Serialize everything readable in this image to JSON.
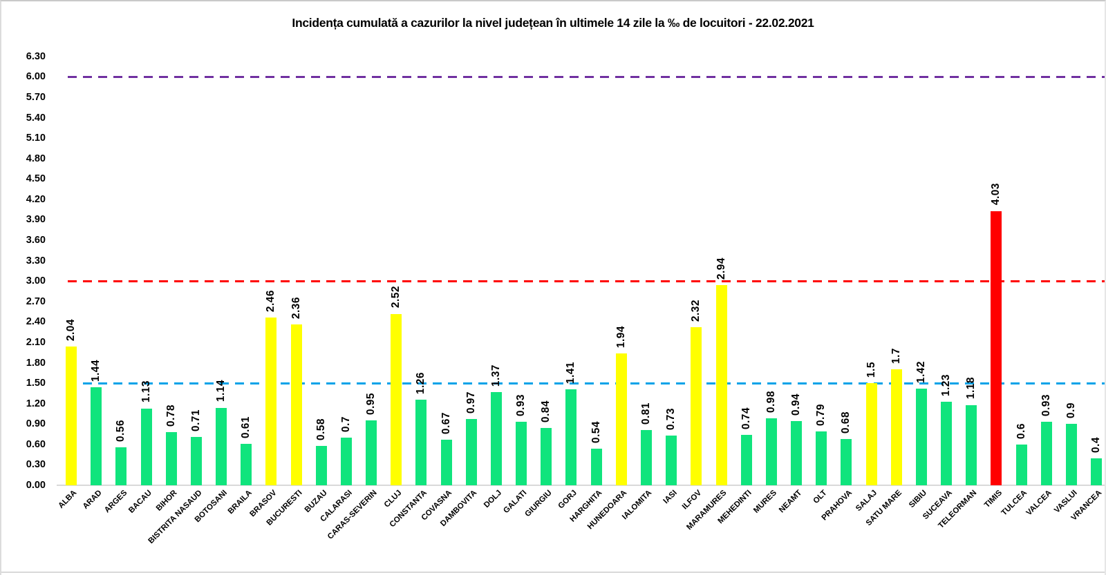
{
  "title": "Incidența cumulată a cazurilor la nivel județean în ultimele 14 zile la ‰ de locuitori - 22.02.2021",
  "chart_data": {
    "type": "bar",
    "title": "Incidența cumulată a cazurilor la nivel județean în ultimele 14 zile la ‰ de locuitori - 22.02.2021",
    "xlabel": "",
    "ylabel": "",
    "ylim": [
      0,
      6.3
    ],
    "ytick_step": 0.3,
    "yticks": [
      "0.00",
      "0.30",
      "0.60",
      "0.90",
      "1.20",
      "1.50",
      "1.80",
      "2.10",
      "2.40",
      "2.70",
      "3.00",
      "3.30",
      "3.60",
      "3.90",
      "4.20",
      "4.50",
      "4.80",
      "5.10",
      "5.40",
      "5.70",
      "6.00",
      "6.30"
    ],
    "grid": "off",
    "legend": "none",
    "categories": [
      "ALBA",
      "ARAD",
      "ARGES",
      "BACAU",
      "BIHOR",
      "BISTRITA NASAUD",
      "BOTOSANI",
      "BRAILA",
      "BRASOV",
      "BUCURESTI",
      "BUZAU",
      "CALARASI",
      "CARAS-SEVERIN",
      "CLUJ",
      "CONSTANTA",
      "COVASNA",
      "DAMBOVITA",
      "DOLJ",
      "GALATI",
      "GIURGIU",
      "GORJ",
      "HARGHITA",
      "HUNEDOARA",
      "IALOMITA",
      "IASI",
      "ILFOV",
      "MARAMURES",
      "MEHEDINTI",
      "MURES",
      "NEAMT",
      "OLT",
      "PRAHOVA",
      "SALAJ",
      "SATU MARE",
      "SIBIU",
      "SUCEAVA",
      "TELEORMAN",
      "TIMIS",
      "TULCEA",
      "VALCEA",
      "VASLUI",
      "VRANCEA"
    ],
    "values": [
      2.04,
      1.44,
      0.56,
      1.13,
      0.78,
      0.71,
      1.14,
      0.61,
      2.46,
      2.36,
      0.58,
      0.7,
      0.95,
      2.52,
      1.26,
      0.67,
      0.97,
      1.37,
      0.93,
      0.84,
      1.41,
      0.54,
      1.94,
      0.81,
      0.73,
      2.32,
      2.94,
      0.74,
      0.98,
      0.94,
      0.79,
      0.68,
      1.5,
      1.7,
      1.42,
      1.23,
      1.18,
      4.03,
      0.6,
      0.93,
      0.9,
      0.4
    ],
    "value_labels": [
      "2.04",
      "1.44",
      "0.56",
      "1.13",
      "0.78",
      "0.71",
      "1.14",
      "0.61",
      "2.46",
      "2.36",
      "0.58",
      "0.7",
      "0.95",
      "2.52",
      "1.26",
      "0.67",
      "0.97",
      "1.37",
      "0.93",
      "0.84",
      "1.41",
      "0.54",
      "1.94",
      "0.81",
      "0.73",
      "2.32",
      "2.94",
      "0.74",
      "0.98",
      "0.94",
      "0.79",
      "0.68",
      "1.5",
      "1.7",
      "1.42",
      "1.23",
      "1.18",
      "4.03",
      "0.6",
      "0.93",
      "0.9",
      "0.4"
    ],
    "bar_colors": [
      "yellow",
      "green",
      "green",
      "green",
      "green",
      "green",
      "green",
      "green",
      "yellow",
      "yellow",
      "green",
      "green",
      "green",
      "yellow",
      "green",
      "green",
      "green",
      "green",
      "green",
      "green",
      "green",
      "green",
      "yellow",
      "green",
      "green",
      "yellow",
      "yellow",
      "green",
      "green",
      "green",
      "green",
      "green",
      "yellow",
      "yellow",
      "green",
      "green",
      "green",
      "red",
      "green",
      "green",
      "green",
      "green"
    ],
    "palette": {
      "green": "#10e47d",
      "yellow": "#ffff00",
      "red": "#ff0000"
    },
    "reference_lines": [
      {
        "value": 6.0,
        "color": "#7030a0",
        "style": "dashed"
      },
      {
        "value": 3.0,
        "color": "#ff0000",
        "style": "dashed"
      },
      {
        "value": 1.5,
        "color": "#00a2e8",
        "style": "dashed"
      }
    ],
    "axis_color": "#d9d9d9"
  }
}
